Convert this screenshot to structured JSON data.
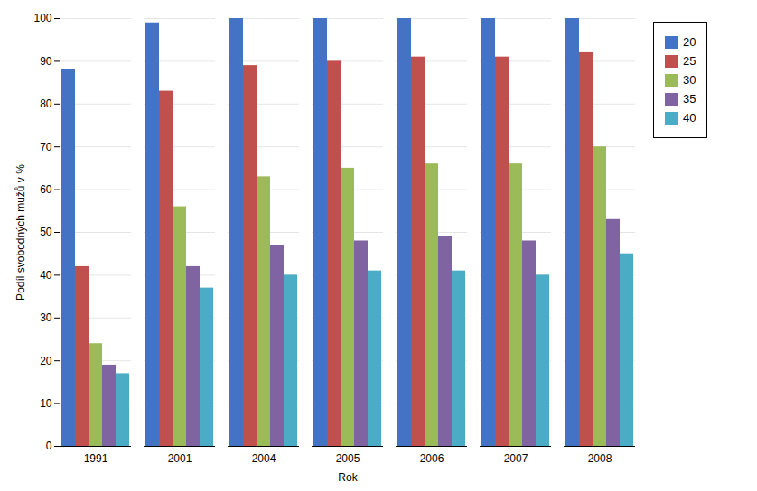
{
  "chart_data": {
    "type": "bar",
    "xlabel": "Rok",
    "ylabel": "Podíl svobodných mužů v %",
    "categories": [
      "1991",
      "2001",
      "2004",
      "2005",
      "2006",
      "2007",
      "2008"
    ],
    "series": [
      {
        "name": "20",
        "color": "#4472C4",
        "values": [
          88,
          99,
          100,
          100,
          100,
          100,
          100
        ]
      },
      {
        "name": "25",
        "color": "#C0504D",
        "values": [
          42,
          83,
          89,
          90,
          91,
          91,
          92
        ]
      },
      {
        "name": "30",
        "color": "#9BBB59",
        "values": [
          24,
          56,
          63,
          65,
          66,
          66,
          70
        ]
      },
      {
        "name": "35",
        "color": "#8064A2",
        "values": [
          19,
          42,
          47,
          48,
          49,
          48,
          53
        ]
      },
      {
        "name": "40",
        "color": "#4BACC6",
        "values": [
          17,
          37,
          40,
          41,
          41,
          40,
          45
        ]
      }
    ],
    "ylim": [
      0,
      100
    ],
    "yticks": [
      0,
      10,
      20,
      30,
      40,
      50,
      60,
      70,
      80,
      90,
      100
    ],
    "grid": true,
    "legend": "right"
  }
}
